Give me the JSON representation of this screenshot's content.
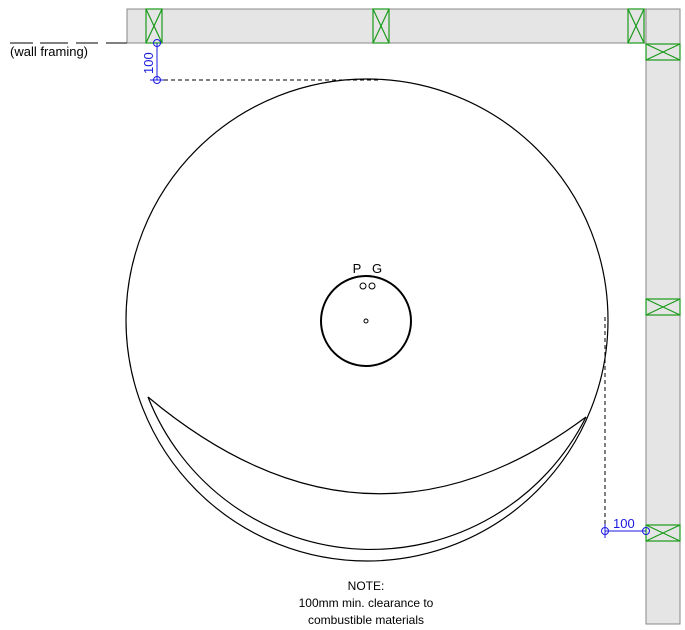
{
  "colors": {
    "background": "#ffffff",
    "wall_fill": "#e5e5e5",
    "wall_stroke": "#888888",
    "stud": "#1a9a1a",
    "dimension": "#1a1ae0",
    "line": "#000000"
  },
  "labels": {
    "wall_framing": "(wall framing)",
    "pipe_p": "P",
    "pipe_g": "G",
    "note_title": "NOTE:",
    "note_line1": "100mm min. clearance to",
    "note_line2": "combustible materials"
  },
  "dimensions": {
    "top_clearance": "100",
    "side_clearance": "100"
  }
}
